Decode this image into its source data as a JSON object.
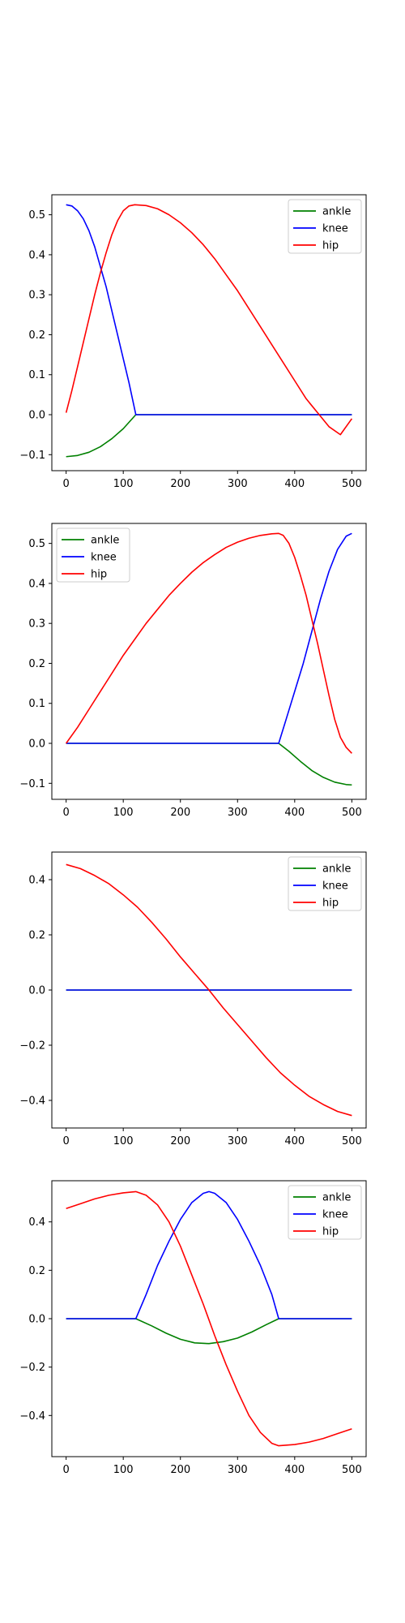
{
  "figure": {
    "background": "#ffffff"
  },
  "series_styles": [
    {
      "name": "ankle",
      "color": "#008000"
    },
    {
      "name": "knee",
      "color": "#0000ff"
    },
    {
      "name": "hip",
      "color": "#ff0000"
    }
  ],
  "chart_data": [
    {
      "type": "line",
      "legend_position": "upper right",
      "xlim": [
        -25,
        525
      ],
      "ylim": [
        -0.14,
        0.55
      ],
      "xticks": [
        0,
        100,
        200,
        300,
        400,
        500
      ],
      "yticks": [
        -0.1,
        0.0,
        0.1,
        0.2,
        0.3,
        0.4,
        0.5
      ],
      "series": [
        {
          "name": "ankle",
          "color": "#008000",
          "points": [
            [
              0,
              -0.105
            ],
            [
              20,
              -0.102
            ],
            [
              40,
              -0.094
            ],
            [
              60,
              -0.08
            ],
            [
              80,
              -0.06
            ],
            [
              100,
              -0.035
            ],
            [
              122,
              0.0
            ],
            [
              200,
              0.0
            ],
            [
              300,
              0.0
            ],
            [
              400,
              0.0
            ],
            [
              500,
              0.0
            ]
          ]
        },
        {
          "name": "knee",
          "color": "#0000ff",
          "points": [
            [
              0,
              0.525
            ],
            [
              10,
              0.522
            ],
            [
              20,
              0.51
            ],
            [
              30,
              0.49
            ],
            [
              40,
              0.46
            ],
            [
              50,
              0.42
            ],
            [
              60,
              0.37
            ],
            [
              70,
              0.32
            ],
            [
              80,
              0.26
            ],
            [
              90,
              0.2
            ],
            [
              100,
              0.14
            ],
            [
              110,
              0.08
            ],
            [
              122,
              0.0
            ],
            [
              200,
              0.0
            ],
            [
              300,
              0.0
            ],
            [
              400,
              0.0
            ],
            [
              500,
              0.0
            ]
          ]
        },
        {
          "name": "hip",
          "color": "#ff0000",
          "points": [
            [
              0,
              0.005
            ],
            [
              10,
              0.06
            ],
            [
              20,
              0.12
            ],
            [
              30,
              0.18
            ],
            [
              40,
              0.24
            ],
            [
              50,
              0.3
            ],
            [
              60,
              0.355
            ],
            [
              70,
              0.405
            ],
            [
              80,
              0.45
            ],
            [
              90,
              0.485
            ],
            [
              100,
              0.51
            ],
            [
              110,
              0.522
            ],
            [
              120,
              0.525
            ],
            [
              140,
              0.523
            ],
            [
              160,
              0.515
            ],
            [
              180,
              0.5
            ],
            [
              200,
              0.48
            ],
            [
              220,
              0.455
            ],
            [
              240,
              0.425
            ],
            [
              260,
              0.39
            ],
            [
              280,
              0.35
            ],
            [
              300,
              0.31
            ],
            [
              320,
              0.265
            ],
            [
              340,
              0.22
            ],
            [
              360,
              0.175
            ],
            [
              380,
              0.13
            ],
            [
              400,
              0.085
            ],
            [
              420,
              0.04
            ],
            [
              440,
              0.005
            ],
            [
              460,
              -0.03
            ],
            [
              480,
              -0.05
            ],
            [
              500,
              -0.01
            ]
          ]
        }
      ]
    },
    {
      "type": "line",
      "legend_position": "upper left",
      "xlim": [
        -25,
        525
      ],
      "ylim": [
        -0.14,
        0.55
      ],
      "xticks": [
        0,
        100,
        200,
        300,
        400,
        500
      ],
      "yticks": [
        -0.1,
        0.0,
        0.1,
        0.2,
        0.3,
        0.4,
        0.5
      ],
      "series": [
        {
          "name": "ankle",
          "color": "#008000",
          "points": [
            [
              0,
              0.0
            ],
            [
              100,
              0.0
            ],
            [
              200,
              0.0
            ],
            [
              300,
              0.0
            ],
            [
              372,
              0.0
            ],
            [
              390,
              -0.02
            ],
            [
              410,
              -0.045
            ],
            [
              430,
              -0.068
            ],
            [
              450,
              -0.085
            ],
            [
              470,
              -0.097
            ],
            [
              490,
              -0.103
            ],
            [
              500,
              -0.104
            ]
          ]
        },
        {
          "name": "knee",
          "color": "#0000ff",
          "points": [
            [
              0,
              0.0
            ],
            [
              100,
              0.0
            ],
            [
              200,
              0.0
            ],
            [
              300,
              0.0
            ],
            [
              372,
              0.0
            ],
            [
              385,
              0.06
            ],
            [
              400,
              0.13
            ],
            [
              415,
              0.2
            ],
            [
              430,
              0.28
            ],
            [
              445,
              0.36
            ],
            [
              460,
              0.43
            ],
            [
              475,
              0.485
            ],
            [
              490,
              0.518
            ],
            [
              500,
              0.525
            ]
          ]
        },
        {
          "name": "hip",
          "color": "#ff0000",
          "points": [
            [
              0,
              0.0
            ],
            [
              20,
              0.04
            ],
            [
              40,
              0.085
            ],
            [
              60,
              0.13
            ],
            [
              80,
              0.175
            ],
            [
              100,
              0.22
            ],
            [
              120,
              0.26
            ],
            [
              140,
              0.3
            ],
            [
              160,
              0.335
            ],
            [
              180,
              0.37
            ],
            [
              200,
              0.4
            ],
            [
              220,
              0.428
            ],
            [
              240,
              0.452
            ],
            [
              260,
              0.472
            ],
            [
              280,
              0.49
            ],
            [
              300,
              0.503
            ],
            [
              320,
              0.513
            ],
            [
              340,
              0.52
            ],
            [
              360,
              0.524
            ],
            [
              372,
              0.525
            ],
            [
              380,
              0.52
            ],
            [
              390,
              0.5
            ],
            [
              400,
              0.465
            ],
            [
              410,
              0.42
            ],
            [
              420,
              0.37
            ],
            [
              430,
              0.31
            ],
            [
              440,
              0.25
            ],
            [
              450,
              0.185
            ],
            [
              460,
              0.12
            ],
            [
              470,
              0.06
            ],
            [
              480,
              0.015
            ],
            [
              490,
              -0.01
            ],
            [
              500,
              -0.025
            ]
          ]
        }
      ]
    },
    {
      "type": "line",
      "legend_position": "upper right",
      "xlim": [
        -25,
        525
      ],
      "ylim": [
        -0.5,
        0.5
      ],
      "xticks": [
        0,
        100,
        200,
        300,
        400,
        500
      ],
      "yticks": [
        -0.4,
        -0.2,
        0.0,
        0.2,
        0.4
      ],
      "series": [
        {
          "name": "ankle",
          "color": "#008000",
          "points": [
            [
              0,
              0.0
            ],
            [
              500,
              0.0
            ]
          ]
        },
        {
          "name": "knee",
          "color": "#0000ff",
          "points": [
            [
              0,
              0.0
            ],
            [
              500,
              0.0
            ]
          ]
        },
        {
          "name": "hip",
          "color": "#ff0000",
          "points": [
            [
              0,
              0.455
            ],
            [
              25,
              0.44
            ],
            [
              50,
              0.415
            ],
            [
              75,
              0.385
            ],
            [
              100,
              0.345
            ],
            [
              125,
              0.3
            ],
            [
              150,
              0.245
            ],
            [
              175,
              0.185
            ],
            [
              200,
              0.12
            ],
            [
              225,
              0.06
            ],
            [
              250,
              0.0
            ],
            [
              275,
              -0.065
            ],
            [
              300,
              -0.125
            ],
            [
              325,
              -0.185
            ],
            [
              350,
              -0.245
            ],
            [
              375,
              -0.3
            ],
            [
              400,
              -0.345
            ],
            [
              425,
              -0.385
            ],
            [
              450,
              -0.415
            ],
            [
              475,
              -0.44
            ],
            [
              500,
              -0.455
            ]
          ]
        }
      ]
    },
    {
      "type": "line",
      "legend_position": "upper right",
      "xlim": [
        -25,
        525
      ],
      "ylim": [
        -0.57,
        0.57
      ],
      "xticks": [
        0,
        100,
        200,
        300,
        400,
        500
      ],
      "yticks": [
        -0.4,
        -0.2,
        0.0,
        0.2,
        0.4
      ],
      "series": [
        {
          "name": "ankle",
          "color": "#008000",
          "points": [
            [
              0,
              0.0
            ],
            [
              100,
              0.0
            ],
            [
              122,
              0.0
            ],
            [
              150,
              -0.03
            ],
            [
              175,
              -0.06
            ],
            [
              200,
              -0.085
            ],
            [
              225,
              -0.1
            ],
            [
              250,
              -0.103
            ],
            [
              275,
              -0.095
            ],
            [
              300,
              -0.08
            ],
            [
              325,
              -0.055
            ],
            [
              350,
              -0.025
            ],
            [
              372,
              0.0
            ],
            [
              400,
              0.0
            ],
            [
              500,
              0.0
            ]
          ]
        },
        {
          "name": "knee",
          "color": "#0000ff",
          "points": [
            [
              0,
              0.0
            ],
            [
              100,
              0.0
            ],
            [
              122,
              0.0
            ],
            [
              140,
              0.1
            ],
            [
              160,
              0.22
            ],
            [
              180,
              0.32
            ],
            [
              200,
              0.41
            ],
            [
              220,
              0.48
            ],
            [
              240,
              0.518
            ],
            [
              250,
              0.525
            ],
            [
              260,
              0.518
            ],
            [
              280,
              0.48
            ],
            [
              300,
              0.41
            ],
            [
              320,
              0.32
            ],
            [
              340,
              0.22
            ],
            [
              360,
              0.1
            ],
            [
              372,
              0.0
            ],
            [
              400,
              0.0
            ],
            [
              500,
              0.0
            ]
          ]
        },
        {
          "name": "hip",
          "color": "#ff0000",
          "points": [
            [
              0,
              0.455
            ],
            [
              25,
              0.475
            ],
            [
              50,
              0.495
            ],
            [
              75,
              0.51
            ],
            [
              100,
              0.52
            ],
            [
              122,
              0.525
            ],
            [
              140,
              0.51
            ],
            [
              160,
              0.47
            ],
            [
              180,
              0.4
            ],
            [
              200,
              0.3
            ],
            [
              220,
              0.18
            ],
            [
              240,
              0.06
            ],
            [
              260,
              -0.07
            ],
            [
              280,
              -0.19
            ],
            [
              300,
              -0.3
            ],
            [
              320,
              -0.4
            ],
            [
              340,
              -0.47
            ],
            [
              360,
              -0.515
            ],
            [
              372,
              -0.525
            ],
            [
              400,
              -0.52
            ],
            [
              425,
              -0.51
            ],
            [
              450,
              -0.495
            ],
            [
              475,
              -0.475
            ],
            [
              500,
              -0.455
            ]
          ]
        }
      ]
    }
  ]
}
